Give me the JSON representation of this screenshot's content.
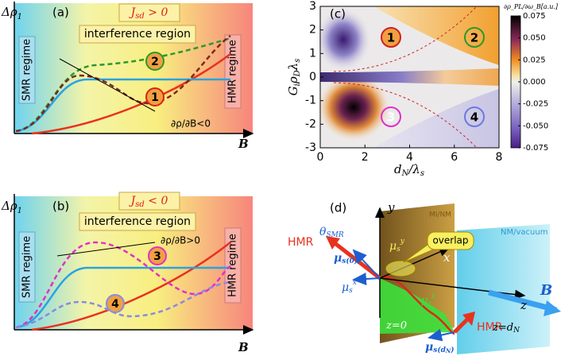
{
  "panel_a": {
    "label": "(a)",
    "y_label": "Δρ",
    "y_sub": "1",
    "x_label": "B",
    "condition": {
      "symbol": "J",
      "sub": "sd",
      "relation": " > 0"
    },
    "region": "interference region",
    "left_regime": "SMR regime",
    "right_regime": "HMR regime",
    "slope_note": "∂ρ/∂B<0",
    "markers": [
      "2",
      "1"
    ]
  },
  "panel_b": {
    "label": "(b)",
    "y_label": "Δρ",
    "y_sub": "1",
    "x_label": "B",
    "condition": {
      "symbol": "J",
      "sub": "sd",
      "relation": " < 0"
    },
    "region": "interference region",
    "left_regime": "SMR regime",
    "right_regime": "HMR regime",
    "slope_note": "∂ρ/∂B>0",
    "markers": [
      "3",
      "4"
    ]
  },
  "panel_c": {
    "label": "(c)",
    "x_label": {
      "main": "d",
      "sub": "N",
      "rest": "/λ",
      "sub2": "s"
    },
    "y_label": {
      "main": "G",
      "sub": "i",
      "rest": "ρ",
      "sub2": "D",
      "rest2": "λ",
      "sub3": "s"
    },
    "colorbar_label": "∂ρ_PL/∂ω_B[a.u.]",
    "xlim": [
      0,
      8
    ],
    "xticks": [
      0,
      2,
      4,
      6,
      8
    ],
    "ylim": [
      -3,
      3
    ],
    "yticks": [
      -3,
      -2,
      -1,
      0,
      1,
      2,
      3
    ],
    "clim": [
      -0.075,
      0.075
    ],
    "cticks": [
      {
        "value": 0.075,
        "label": "0.075"
      },
      {
        "value": 0.05,
        "label": "0.050"
      },
      {
        "value": 0.025,
        "label": "0.025"
      },
      {
        "value": 0,
        "label": "0.000"
      },
      {
        "value": -0.025,
        "label": "-0.025"
      },
      {
        "value": -0.05,
        "label": "-0.050"
      },
      {
        "value": -0.075,
        "label": "-0.075"
      }
    ],
    "markers": [
      "1",
      "2",
      "3",
      "4"
    ]
  },
  "panel_d": {
    "label": "(d)",
    "y_axis": "y",
    "x_axis": "x",
    "z_axis": "z",
    "theta": {
      "main": "θ",
      "sub": "SMR"
    },
    "hmr_left": "HMR",
    "hmr_right": "HMR",
    "mu0": {
      "main": "μ",
      "sub": "s(0)"
    },
    "mux": {
      "main": "μ",
      "sub": "s",
      "sup": "x"
    },
    "muy": {
      "main": "μ",
      "sub": "s",
      "sup": "y"
    },
    "muy2": {
      "main": "μ",
      "sub": "s",
      "sup": "y"
    },
    "mudn": {
      "main": "μ",
      "sub": "s(d",
      "sub2": "N",
      "end": ")"
    },
    "interface1": "MI/NM",
    "interface2": "NM/vacuum",
    "overlap": "overlap",
    "z0": "z=0",
    "zdn": {
      "main": "z=d",
      "sub": "N"
    },
    "field": "B"
  }
}
